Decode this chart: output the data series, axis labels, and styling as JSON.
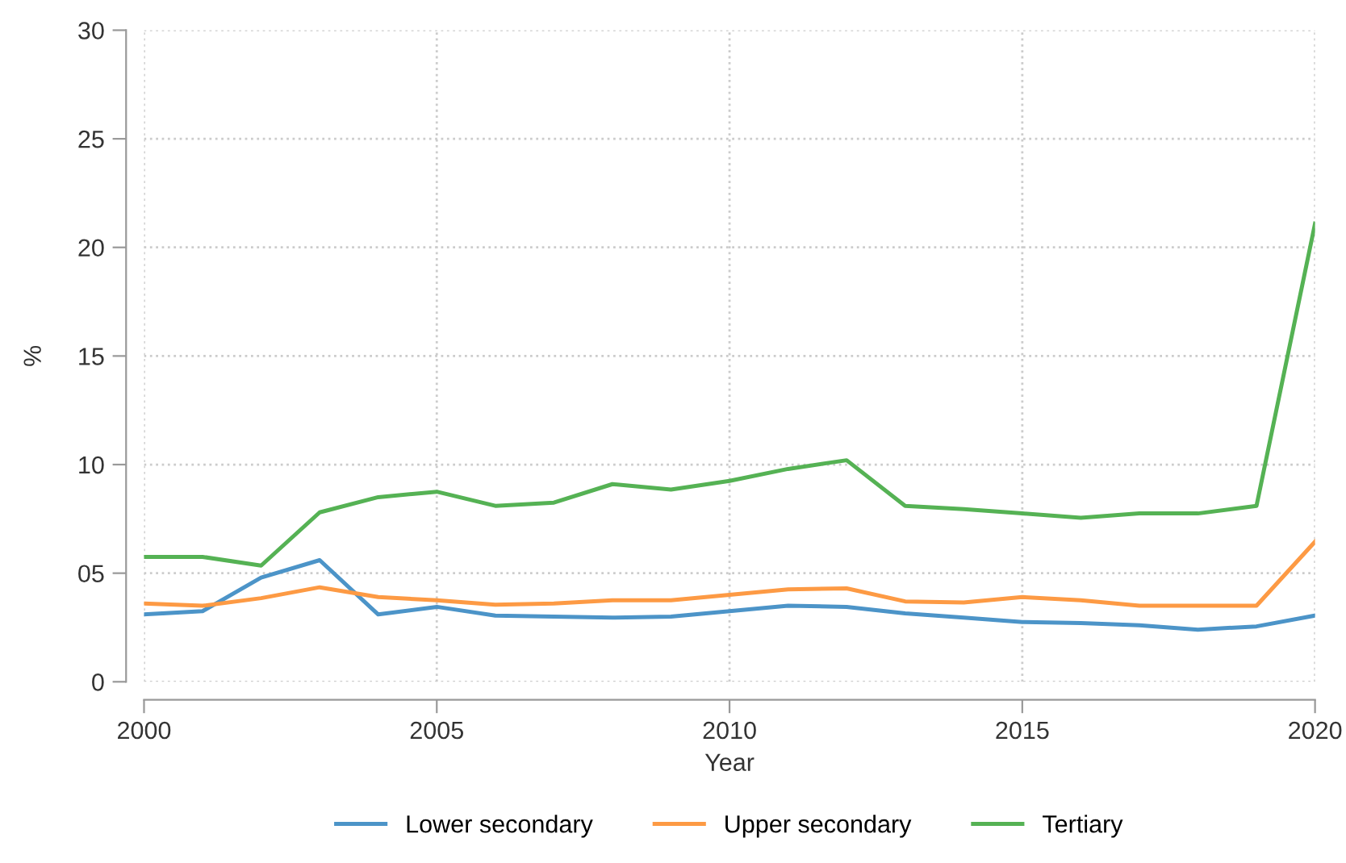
{
  "chart_data": {
    "type": "line",
    "xlabel": "Year",
    "ylabel": "%",
    "x": [
      2000,
      2001,
      2002,
      2003,
      2004,
      2005,
      2006,
      2007,
      2008,
      2009,
      2010,
      2011,
      2012,
      2013,
      2014,
      2015,
      2016,
      2017,
      2018,
      2019,
      2020
    ],
    "series": [
      {
        "name": "Lower secondary",
        "color": "#4c94c8",
        "values": [
          3.1,
          3.25,
          4.8,
          5.6,
          3.1,
          3.45,
          3.05,
          3.0,
          2.95,
          3.0,
          3.25,
          3.5,
          3.45,
          3.15,
          2.95,
          2.75,
          2.7,
          2.6,
          2.4,
          2.55,
          3.05
        ]
      },
      {
        "name": "Upper secondary",
        "color": "#fd9a44",
        "values": [
          3.6,
          3.5,
          3.85,
          4.35,
          3.9,
          3.75,
          3.55,
          3.6,
          3.75,
          3.75,
          4.0,
          4.25,
          4.3,
          3.7,
          3.65,
          3.9,
          3.75,
          3.5,
          3.5,
          3.5,
          6.45
        ]
      },
      {
        "name": "Tertiary",
        "color": "#55b254",
        "values": [
          5.75,
          5.75,
          5.35,
          7.8,
          8.5,
          8.75,
          8.1,
          8.25,
          9.1,
          8.85,
          9.25,
          9.8,
          10.2,
          8.1,
          7.95,
          7.75,
          7.55,
          7.75,
          7.75,
          8.1,
          21.1
        ]
      }
    ],
    "xlim": [
      2000,
      2020
    ],
    "xticks": [
      2000,
      2005,
      2010,
      2015,
      2020
    ],
    "ylim": [
      0,
      30
    ],
    "yticks": [
      0,
      {
        "value": 5,
        "label": "05"
      },
      10,
      15,
      20,
      25,
      30
    ],
    "grid": true,
    "legend": "bottom",
    "marker": "none",
    "line_style": "solid"
  }
}
